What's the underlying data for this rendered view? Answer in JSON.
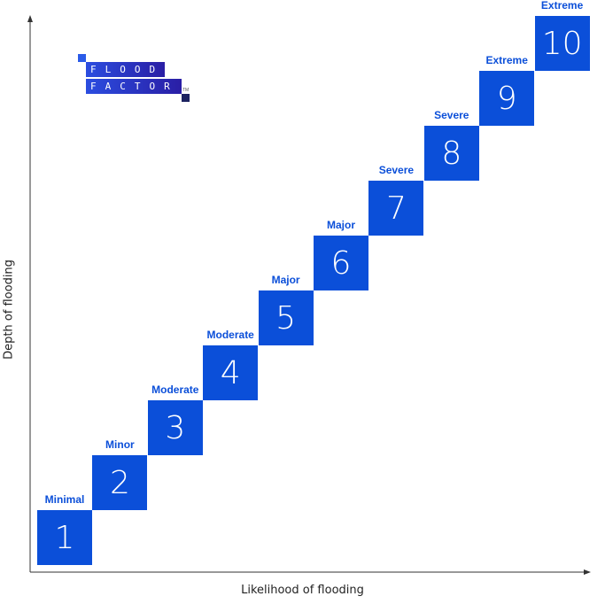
{
  "logo": {
    "line1": "FLOOD",
    "line2": "FACTOR",
    "tm": "TM"
  },
  "axes": {
    "x_label": "Likelihood of flooding",
    "y_label": "Depth of flooding"
  },
  "colors": {
    "accent": "#0b4fd9",
    "axis": "#333333"
  },
  "steps": [
    {
      "score": "1",
      "label": "Minimal"
    },
    {
      "score": "2",
      "label": "Minor"
    },
    {
      "score": "3",
      "label": "Moderate"
    },
    {
      "score": "4",
      "label": "Moderate"
    },
    {
      "score": "5",
      "label": "Major"
    },
    {
      "score": "6",
      "label": "Major"
    },
    {
      "score": "7",
      "label": "Severe"
    },
    {
      "score": "8",
      "label": "Severe"
    },
    {
      "score": "9",
      "label": "Extreme"
    },
    {
      "score": "10",
      "label": "Extreme"
    }
  ]
}
